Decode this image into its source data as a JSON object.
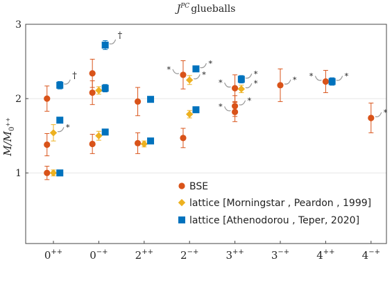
{
  "chart_data": {
    "type": "scatter",
    "title": "J^{PC} glueballs",
    "title_main": "J",
    "title_sup": "PC",
    "title_rest": "glueballs",
    "ylabel": "M/M_{0++}",
    "ylabel_main": "M/M",
    "ylabel_sub": "0",
    "ylabel_subsup": "++",
    "ylim": [
      0.05,
      3.0
    ],
    "yticks": [
      1,
      2,
      3
    ],
    "grid": true,
    "legend_position": "lower-center",
    "categories": [
      "0^{++}",
      "0^{-+}",
      "2^{++}",
      "2^{-+}",
      "3^{++}",
      "3^{-+}",
      "4^{++}",
      "4^{-+}"
    ],
    "category_labels": [
      {
        "base": "0",
        "sup": "++"
      },
      {
        "base": "0",
        "sup": "−+"
      },
      {
        "base": "2",
        "sup": "++"
      },
      {
        "base": "2",
        "sup": "−+"
      },
      {
        "base": "3",
        "sup": "++"
      },
      {
        "base": "3",
        "sup": "−+"
      },
      {
        "base": "4",
        "sup": "++"
      },
      {
        "base": "4",
        "sup": "−+"
      }
    ],
    "series": [
      {
        "name": "BSE",
        "marker": "circle",
        "color": "#d95319",
        "points": [
          {
            "category": "0^{++}",
            "y": 1.0,
            "err": 0.09,
            "offset": -0.22
          },
          {
            "category": "0^{++}",
            "y": 1.38,
            "err": 0.15,
            "offset": -0.22
          },
          {
            "category": "0^{++}",
            "y": 2.0,
            "err": 0.17,
            "offset": -0.22
          },
          {
            "category": "0^{-+}",
            "y": 1.39,
            "err": 0.13,
            "offset": -0.22
          },
          {
            "category": "0^{-+}",
            "y": 2.08,
            "err": 0.16,
            "offset": -0.22
          },
          {
            "category": "0^{-+}",
            "y": 2.34,
            "err": 0.19,
            "offset": -0.22
          },
          {
            "category": "2^{++}",
            "y": 1.4,
            "err": 0.14,
            "offset": -0.22
          },
          {
            "category": "2^{++}",
            "y": 1.96,
            "err": 0.19,
            "offset": -0.22
          },
          {
            "category": "2^{-+}",
            "y": 1.47,
            "err": 0.13,
            "offset": -0.22
          },
          {
            "category": "2^{-+}",
            "y": 2.32,
            "err": 0.19,
            "offset": -0.22,
            "note": "*",
            "note_side": "left"
          },
          {
            "category": "3^{++}",
            "y": 1.82,
            "err": 0.13,
            "offset": 0.0,
            "note": "*",
            "note_side": "left"
          },
          {
            "category": "3^{++}",
            "y": 1.9,
            "err": 0.14,
            "offset": 0.0,
            "note": "*",
            "note_side": "right"
          },
          {
            "category": "3^{++}",
            "y": 2.14,
            "err": 0.18,
            "offset": 0.0,
            "note": "*",
            "note_side": "left"
          },
          {
            "category": "3^{-+}",
            "y": 2.18,
            "err": 0.22,
            "offset": 0.0,
            "note": "*",
            "note_side": "right"
          },
          {
            "category": "4^{++}",
            "y": 2.23,
            "err": 0.15,
            "offset": 0.0,
            "note": "*",
            "note_side": "left"
          },
          {
            "category": "4^{-+}",
            "y": 1.74,
            "err": 0.2,
            "offset": 0.0,
            "note": "*",
            "note_side": "right"
          }
        ]
      },
      {
        "name": "lattice [Morningstar , Peardon , 1999]",
        "marker": "diamond",
        "color": "#edb120",
        "points": [
          {
            "category": "0^{++}",
            "y": 1.0,
            "err": 0.04,
            "offset": 0.0
          },
          {
            "category": "0^{++}",
            "y": 1.54,
            "err": 0.11,
            "offset": 0.0,
            "note": "*",
            "note_side": "right"
          },
          {
            "category": "0^{-+}",
            "y": 1.5,
            "err": 0.06,
            "offset": 0.0
          },
          {
            "category": "0^{-+}",
            "y": 2.11,
            "err": 0.05,
            "offset": 0.0
          },
          {
            "category": "2^{++}",
            "y": 1.39,
            "err": 0.04,
            "offset": 0.0
          },
          {
            "category": "2^{-+}",
            "y": 1.79,
            "err": 0.05,
            "offset": 0.0
          },
          {
            "category": "2^{-+}",
            "y": 2.25,
            "err": 0.06,
            "offset": 0.0,
            "note": "*",
            "note_side": "right"
          },
          {
            "category": "3^{++}",
            "y": 2.13,
            "err": 0.05,
            "offset": 0.22,
            "note": "*",
            "note_side": "right"
          }
        ]
      },
      {
        "name": "lattice [Athenodorou , Teper, 2020]",
        "marker": "square",
        "color": "#0072bd",
        "points": [
          {
            "category": "0^{++}",
            "y": 1.0,
            "err": 0.02,
            "offset": 0.22
          },
          {
            "category": "0^{++}",
            "y": 1.71,
            "err": 0.02,
            "offset": 0.22
          },
          {
            "category": "0^{++}",
            "y": 2.18,
            "err": 0.05,
            "offset": 0.22,
            "note": "†",
            "note_side": "right"
          },
          {
            "category": "0^{-+}",
            "y": 1.55,
            "err": 0.02,
            "offset": 0.22
          },
          {
            "category": "0^{-+}",
            "y": 2.14,
            "err": 0.05,
            "offset": 0.22
          },
          {
            "category": "0^{-+}",
            "y": 2.72,
            "err": 0.06,
            "offset": 0.22,
            "note": "†",
            "note_side": "right"
          },
          {
            "category": "2^{++}",
            "y": 1.43,
            "err": 0.02,
            "offset": 0.22
          },
          {
            "category": "2^{++}",
            "y": 1.99,
            "err": 0.02,
            "offset": 0.22
          },
          {
            "category": "2^{-+}",
            "y": 1.85,
            "err": 0.03,
            "offset": 0.22
          },
          {
            "category": "2^{-+}",
            "y": 2.4,
            "err": 0.04,
            "offset": 0.22,
            "note": "*",
            "note_side": "right"
          },
          {
            "category": "3^{++}",
            "y": 2.26,
            "err": 0.05,
            "offset": 0.22,
            "note": "*",
            "note_side": "right"
          },
          {
            "category": "4^{++}",
            "y": 2.23,
            "err": 0.05,
            "offset": 0.22,
            "note": "*",
            "note_side": "right"
          }
        ]
      }
    ]
  }
}
